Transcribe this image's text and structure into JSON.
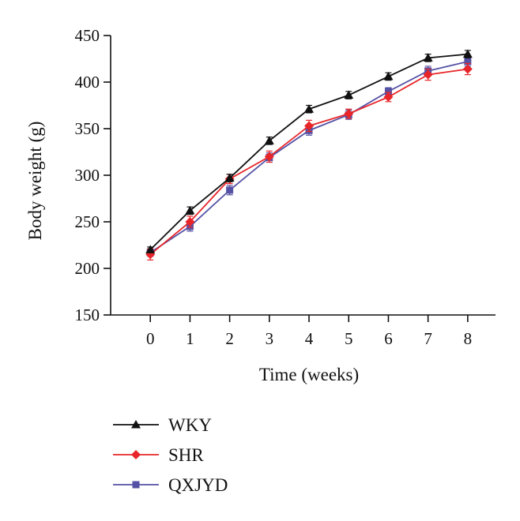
{
  "chart_data": {
    "type": "line",
    "title": "",
    "xlabel": "Time (weeks)",
    "ylabel": "Body weight (g)",
    "x": [
      0,
      1,
      2,
      3,
      4,
      5,
      6,
      7,
      8
    ],
    "xlim": [
      -1,
      8.7
    ],
    "ylim": [
      150,
      450
    ],
    "yticks": [
      150,
      200,
      250,
      300,
      350,
      400,
      450
    ],
    "xticks": [
      0,
      1,
      2,
      3,
      4,
      5,
      6,
      7,
      8
    ],
    "grid": false,
    "legend": "bottom-left",
    "series": [
      {
        "name": "WKY",
        "color": "#111111",
        "marker": "triangle",
        "values": [
          220,
          262,
          297,
          337,
          371,
          386,
          406,
          426,
          430
        ],
        "errors": [
          3,
          4,
          4,
          4,
          4,
          4,
          4,
          4,
          4
        ]
      },
      {
        "name": "SHR",
        "color": "#e8262a",
        "marker": "diamond",
        "values": [
          215,
          250,
          296,
          320,
          353,
          366,
          384,
          408,
          414
        ],
        "errors": [
          6,
          6,
          5,
          6,
          6,
          5,
          5,
          6,
          6
        ]
      },
      {
        "name": "QXJYD",
        "color": "#5552a5",
        "marker": "square",
        "values": [
          217,
          245,
          284,
          319,
          348,
          365,
          390,
          412,
          422
        ],
        "errors": [
          4,
          5,
          5,
          5,
          5,
          5,
          4,
          5,
          5
        ]
      }
    ]
  }
}
